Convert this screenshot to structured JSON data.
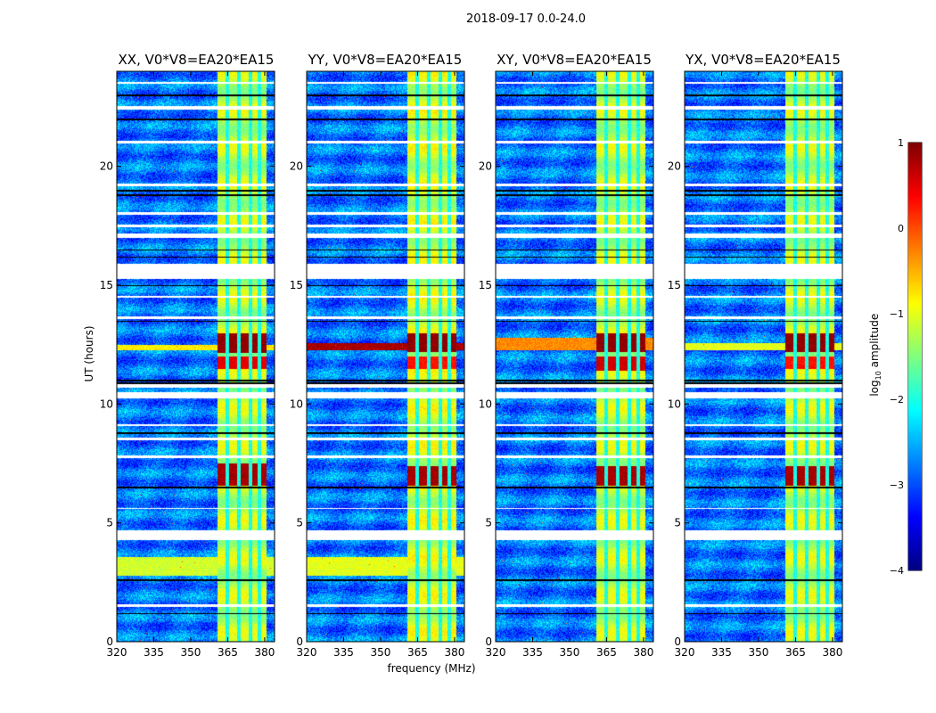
{
  "chart_data": {
    "type": "heatmap",
    "title": "2018-09-17 0.0-24.0",
    "xlabel": "frequency (MHz)",
    "ylabel": "UT (hours)",
    "xlim": [
      320,
      384
    ],
    "ylim": [
      0,
      24
    ],
    "xticks": [
      "320",
      "335",
      "350",
      "365",
      "380"
    ],
    "xtick_values": [
      320,
      335,
      350,
      365,
      380
    ],
    "yticks": [
      "0",
      "5",
      "10",
      "15",
      "20"
    ],
    "ytick_values": [
      0,
      5,
      10,
      15,
      20
    ],
    "colorbar": {
      "label": "log",
      "label_sub": "10",
      "label_rest": " amplitude",
      "colormap": "jet",
      "range": [
        -4,
        1
      ],
      "ticks": [
        "1",
        "0",
        "−1",
        "−2",
        "−3",
        "−4"
      ],
      "tick_values": [
        1,
        0,
        -1,
        -2,
        -3,
        -4
      ]
    },
    "panels": [
      {
        "title": "XX, V0*V8=EA20*EA15",
        "band_level": -1.2,
        "rfi_rows": [
          [
            12.15,
            13.0,
            0.9
          ],
          [
            11.5,
            12.0,
            0.5
          ],
          [
            6.6,
            7.5,
            0.8
          ]
        ],
        "broadband_rows": [
          [
            2.8,
            3.6,
            -1.1
          ],
          [
            12.3,
            12.5,
            -0.8
          ]
        ]
      },
      {
        "title": "YY, V0*V8=EA20*EA15",
        "band_level": -1.1,
        "rfi_rows": [
          [
            12.2,
            13.0,
            0.9
          ],
          [
            11.5,
            12.0,
            0.3
          ],
          [
            6.6,
            7.4,
            0.8
          ]
        ],
        "broadband_rows": [
          [
            2.8,
            3.6,
            -1.0
          ],
          [
            12.3,
            12.6,
            0.8
          ]
        ]
      },
      {
        "title": "XY, V0*V8=EA20*EA15",
        "band_level": -1.2,
        "rfi_rows": [
          [
            12.2,
            13.0,
            0.9
          ],
          [
            11.4,
            12.0,
            0.6
          ],
          [
            6.6,
            7.4,
            0.8
          ]
        ],
        "broadband_rows": [
          [
            12.3,
            12.8,
            -0.3
          ]
        ]
      },
      {
        "title": "YX, V0*V8=EA20*EA15",
        "band_level": -1.2,
        "rfi_rows": [
          [
            12.2,
            13.0,
            0.9
          ],
          [
            11.5,
            12.0,
            0.3
          ],
          [
            6.6,
            7.4,
            0.8
          ]
        ],
        "broadband_rows": [
          [
            12.3,
            12.6,
            -1.0
          ]
        ]
      }
    ],
    "band_mhz": [
      360.5,
      380.5
    ],
    "band_channel_edges_mhz": [
      364.5,
      369.3,
      374.0,
      377.8
    ],
    "background_level": -2.8,
    "flagged_hours": [
      [
        15.3,
        15.9
      ],
      [
        4.3,
        4.7
      ],
      [
        22.4,
        22.55
      ],
      [
        21.0,
        21.1
      ],
      [
        10.25,
        10.5
      ],
      [
        10.7,
        10.85
      ],
      [
        17.0,
        17.2
      ],
      [
        17.45,
        17.55
      ],
      [
        18.0,
        18.1
      ],
      [
        8.5,
        8.6
      ],
      [
        7.75,
        7.85
      ],
      [
        5.6,
        5.65
      ],
      [
        1.5,
        1.6
      ],
      [
        23.5,
        23.55
      ],
      [
        19.2,
        19.3
      ],
      [
        13.6,
        13.7
      ],
      [
        14.5,
        14.55
      ],
      [
        9.1,
        9.15
      ]
    ],
    "dark_rows_hours": [
      23.0,
      22.0,
      19.0,
      18.8,
      16.5,
      16.2,
      13.5,
      11.0,
      10.9,
      8.8,
      6.5,
      2.6,
      1.2,
      15.0
    ]
  }
}
